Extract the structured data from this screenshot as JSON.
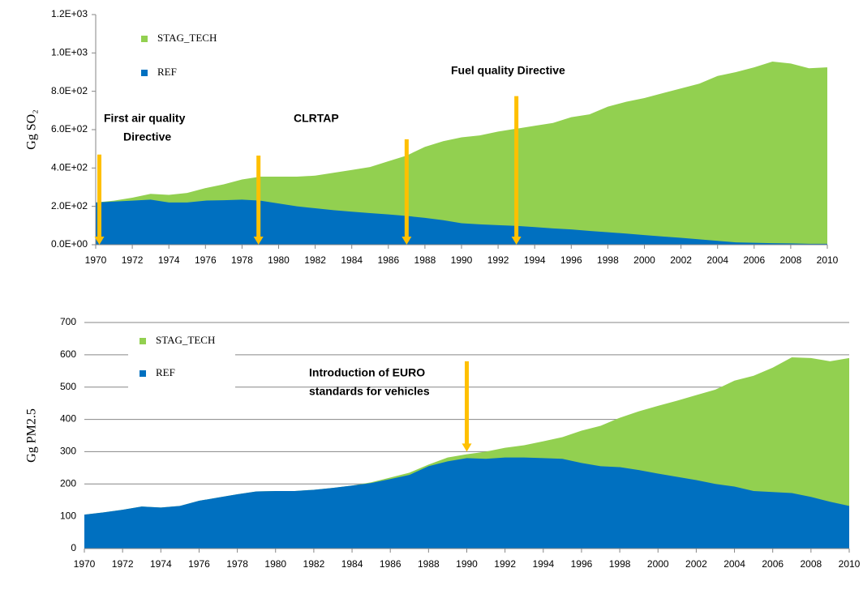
{
  "chart_data": [
    {
      "type": "area",
      "y_label": "Gg SO₂",
      "x": [
        1970,
        1971,
        1972,
        1973,
        1974,
        1975,
        1976,
        1977,
        1978,
        1979,
        1980,
        1981,
        1982,
        1983,
        1984,
        1985,
        1986,
        1987,
        1988,
        1989,
        1990,
        1991,
        1992,
        1993,
        1994,
        1995,
        1996,
        1997,
        1998,
        1999,
        2000,
        2001,
        2002,
        2003,
        2004,
        2005,
        2006,
        2007,
        2008,
        2009,
        2010
      ],
      "series": [
        {
          "name": "STAG_TECH",
          "color": "#92d050",
          "values": [
            220,
            230,
            245,
            265,
            260,
            270,
            295,
            315,
            340,
            355,
            355,
            355,
            360,
            375,
            390,
            405,
            435,
            465,
            510,
            540,
            560,
            570,
            590,
            605,
            620,
            635,
            665,
            680,
            720,
            745,
            765,
            790,
            815,
            840,
            880,
            900,
            925,
            955,
            945,
            920,
            925
          ]
        },
        {
          "name": "REF",
          "color": "#0070c0",
          "values": [
            220,
            225,
            230,
            235,
            220,
            220,
            230,
            232,
            235,
            230,
            215,
            200,
            190,
            180,
            172,
            165,
            158,
            150,
            140,
            128,
            112,
            106,
            102,
            98,
            92,
            85,
            80,
            72,
            65,
            58,
            50,
            43,
            36,
            28,
            20,
            12,
            10,
            8,
            7,
            5,
            5
          ]
        }
      ],
      "xlim": [
        1970,
        2010
      ],
      "xticks": [
        1970,
        1972,
        1974,
        1976,
        1978,
        1980,
        1982,
        1984,
        1986,
        1988,
        1990,
        1992,
        1994,
        1996,
        1998,
        2000,
        2002,
        2004,
        2006,
        2008,
        2010
      ],
      "ylim": [
        0,
        1200
      ],
      "yticks": [
        {
          "value": 0,
          "label": "0.0E+00"
        },
        {
          "value": 200,
          "label": "2.0E+02"
        },
        {
          "value": 400,
          "label": "4.0E+02"
        },
        {
          "value": 600,
          "label": "6.0E+02"
        },
        {
          "value": 800,
          "label": "8.0E+02"
        },
        {
          "value": 1000,
          "label": "1.0E+03"
        },
        {
          "value": 1200,
          "label": "1.2E+03"
        }
      ],
      "grid": false,
      "legend": "upper left",
      "labels": [
        "First air quality",
        "Directive",
        "CLRTAP",
        "Fuel quality Directive"
      ],
      "arrows": [
        {
          "x": 1970.2,
          "from": 470,
          "to": 0
        },
        {
          "x": 1978.9,
          "from": 465,
          "to": 0
        },
        {
          "x": 1987,
          "from": 550,
          "to": 0
        },
        {
          "x": 1993,
          "from": 775,
          "to": 0
        }
      ],
      "arrow_color": "#ffc000"
    },
    {
      "type": "area",
      "y_label": "Gg PM2.5",
      "x": [
        1970,
        1971,
        1972,
        1973,
        1974,
        1975,
        1976,
        1977,
        1978,
        1979,
        1980,
        1981,
        1982,
        1983,
        1984,
        1985,
        1986,
        1987,
        1988,
        1989,
        1990,
        1991,
        1992,
        1993,
        1994,
        1995,
        1996,
        1997,
        1998,
        1999,
        2000,
        2001,
        2002,
        2003,
        2004,
        2005,
        2006,
        2007,
        2008,
        2009,
        2010
      ],
      "series": [
        {
          "name": "STAG_TECH",
          "color": "#92d050",
          "values": [
            105,
            112,
            120,
            130,
            127,
            132,
            148,
            158,
            168,
            177,
            178,
            178,
            182,
            188,
            195,
            205,
            220,
            235,
            260,
            282,
            292,
            300,
            312,
            320,
            332,
            345,
            365,
            380,
            405,
            425,
            442,
            458,
            475,
            492,
            520,
            535,
            560,
            592,
            590,
            580,
            590
          ]
        },
        {
          "name": "REF",
          "color": "#0070c0",
          "values": [
            105,
            112,
            120,
            130,
            127,
            132,
            148,
            158,
            168,
            177,
            178,
            178,
            182,
            188,
            195,
            203,
            215,
            228,
            255,
            270,
            280,
            278,
            282,
            282,
            280,
            278,
            265,
            255,
            252,
            243,
            232,
            222,
            212,
            200,
            192,
            178,
            175,
            172,
            160,
            145,
            132
          ]
        }
      ],
      "xlim": [
        1970,
        2010
      ],
      "xticks": [
        1970,
        1972,
        1974,
        1976,
        1978,
        1980,
        1982,
        1984,
        1986,
        1988,
        1990,
        1992,
        1994,
        1996,
        1998,
        2000,
        2002,
        2004,
        2006,
        2008,
        2010
      ],
      "ylim": [
        0,
        700
      ],
      "yticks": [
        0,
        100,
        200,
        300,
        400,
        500,
        600,
        700
      ],
      "grid": true,
      "legend": "upper left",
      "labels": [
        "Introduction of EURO",
        "standards for vehicles"
      ],
      "arrows": [
        {
          "x": 1990,
          "from": 580,
          "to": 300
        }
      ],
      "arrow_color": "#ffc000"
    }
  ]
}
